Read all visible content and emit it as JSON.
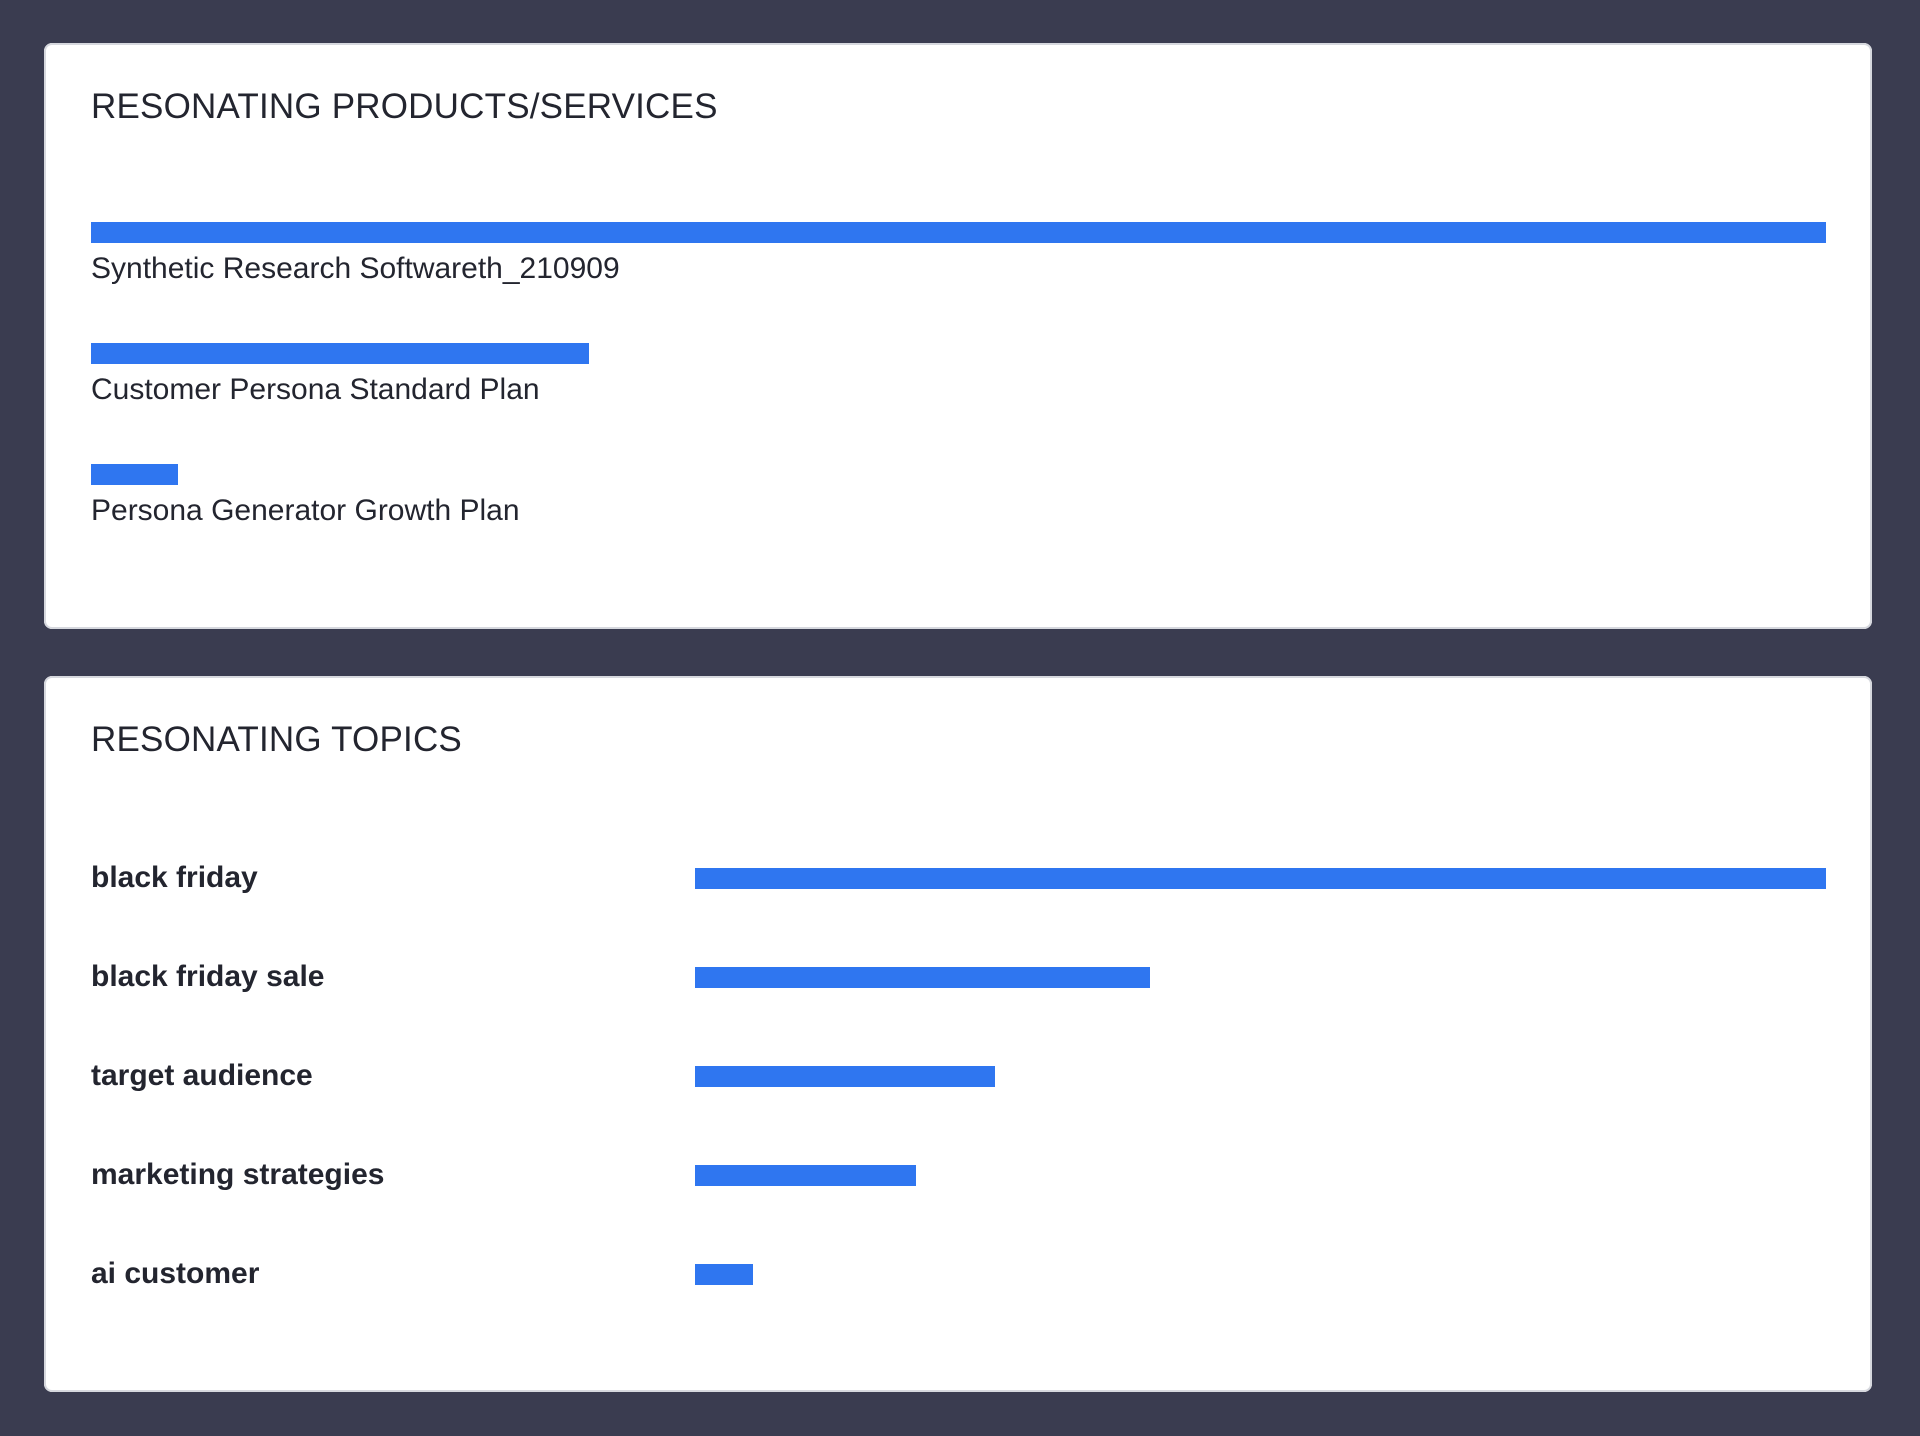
{
  "colors": {
    "background": "#3a3c50",
    "bar": "#2f76f0",
    "text": "#23252f"
  },
  "chart_data": [
    {
      "type": "bar",
      "orientation": "horizontal",
      "title": "RESONATING PRODUCTS/SERVICES",
      "categories": [
        "Synthetic Research Softwareth_210909",
        "Customer Persona Standard Plan",
        "Persona Generator Growth Plan"
      ],
      "values": [
        1.0,
        0.287,
        0.05
      ],
      "grid": false
    },
    {
      "type": "bar",
      "orientation": "horizontal",
      "title": "RESONATING TOPICS",
      "categories": [
        "black friday",
        "black friday sale",
        "target audience",
        "marketing strategies",
        "ai customer"
      ],
      "values": [
        1.0,
        0.402,
        0.265,
        0.195,
        0.051
      ],
      "grid": false
    }
  ]
}
